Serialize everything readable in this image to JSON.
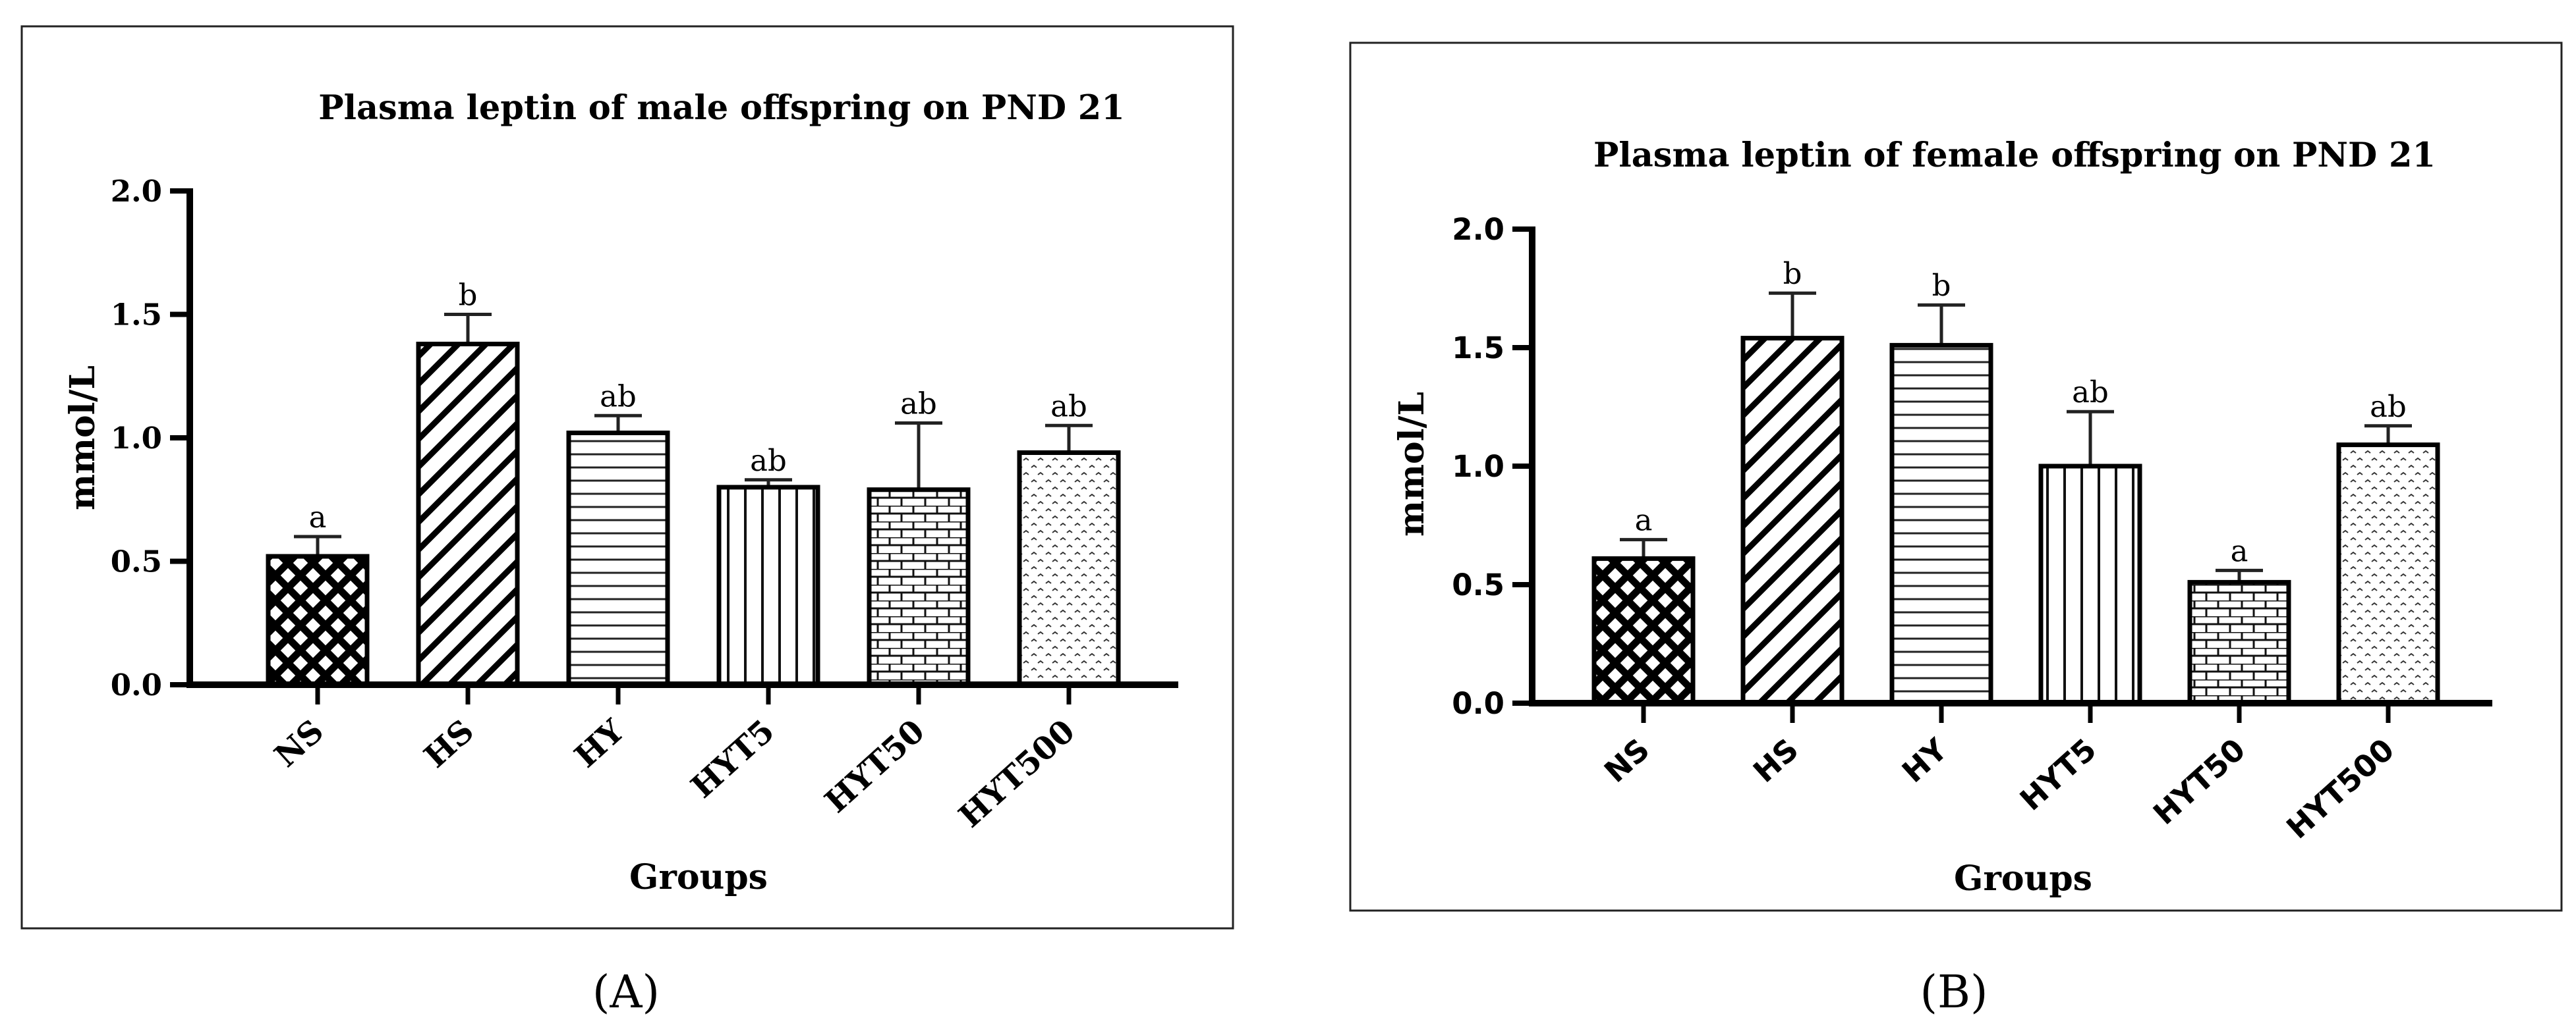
{
  "chart_data": [
    {
      "type": "bar",
      "panel_label": "(A)",
      "title": "Plasma leptin of male offspring on PND 21",
      "xlabel": "Groups",
      "ylabel": "mmol/L",
      "ylim": [
        0,
        2.0
      ],
      "yticks": [
        "0.0",
        "0.5",
        "1.0",
        "1.5",
        "2.0"
      ],
      "categories": [
        "NS",
        "HS",
        "HY",
        "HYT5",
        "HYT50",
        "HYT500"
      ],
      "values": [
        0.52,
        1.38,
        1.02,
        0.8,
        0.79,
        0.94
      ],
      "errors": [
        0.08,
        0.12,
        0.07,
        0.03,
        0.27,
        0.11
      ],
      "significance": [
        "a",
        "b",
        "ab",
        "ab",
        "ab",
        "ab"
      ],
      "patterns": [
        "crosshatch",
        "diagonal",
        "horizontal",
        "vertical",
        "brick",
        "dots"
      ]
    },
    {
      "type": "bar",
      "panel_label": "(B)",
      "title": "Plasma leptin of female offspring on PND 21",
      "xlabel": "Groups",
      "ylabel": "mmol/L",
      "ylim": [
        0,
        2.0
      ],
      "yticks": [
        "0.0",
        "0.5",
        "1.0",
        "1.5",
        "2.0"
      ],
      "categories": [
        "NS",
        "HS",
        "HY",
        "HYT5",
        "HYT50",
        "HYT500"
      ],
      "values": [
        0.61,
        1.54,
        1.51,
        1.0,
        0.51,
        1.09
      ],
      "errors": [
        0.08,
        0.19,
        0.17,
        0.23,
        0.05,
        0.08
      ],
      "significance": [
        "a",
        "b",
        "b",
        "ab",
        "a",
        "ab"
      ],
      "patterns": [
        "crosshatch",
        "diagonal",
        "horizontal",
        "vertical",
        "brick",
        "dots"
      ]
    }
  ]
}
